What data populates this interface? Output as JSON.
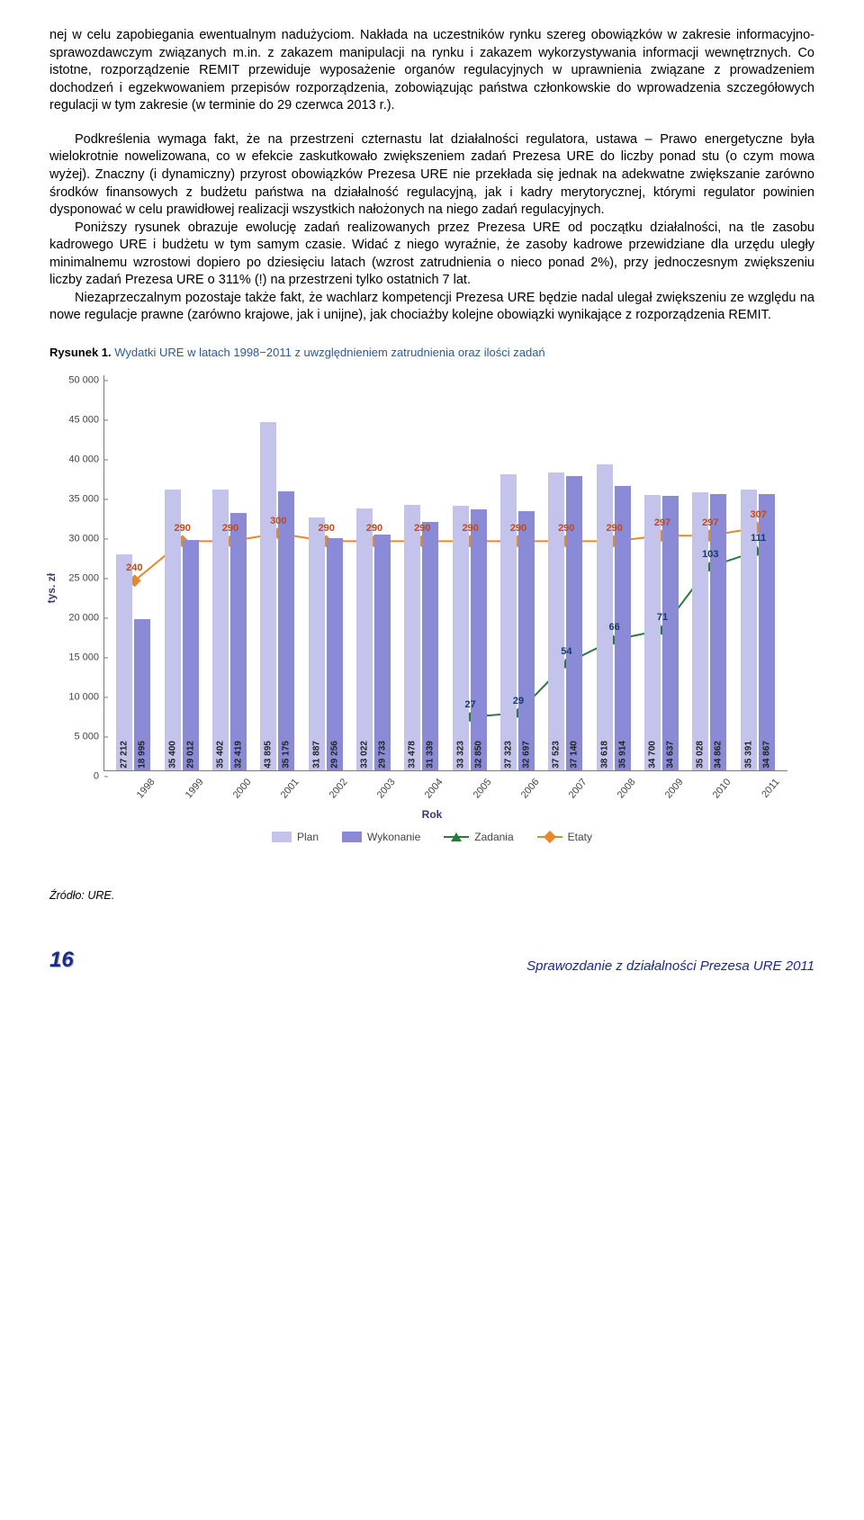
{
  "paragraphs": {
    "p1": "nej w celu zapobiegania ewentualnym nadużyciom. Nakłada na uczestników rynku szereg obowiązków w zakresie informacyjno-sprawozdawczym związanych m.in. z zakazem manipulacji na rynku i zakazem wykorzystywania informacji wewnętrznych. Co istotne, rozporządzenie REMIT przewiduje wyposażenie organów regulacyjnych w uprawnienia związane z prowadzeniem dochodzeń i egzekwowaniem przepisów rozporządzenia, zobowiązując państwa członkowskie do wprowadzenia szczegółowych regulacji w tym zakresie (w terminie do 29 czerwca 2013 r.).",
    "p2": "Podkreślenia wymaga fakt, że na przestrzeni czternastu lat działalności regulatora, ustawa – Prawo energetyczne była wielokrotnie nowelizowana, co w efekcie zaskutkowało zwiększeniem zadań Prezesa URE do liczby ponad stu (o czym mowa wyżej). Znaczny (i dynamiczny) przyrost obowiązków Prezesa URE nie przekłada się jednak na adekwatne zwiększanie zarówno środków finansowych z budżetu państwa na działalność regulacyjną, jak i kadry merytorycznej, którymi regulator powinien dysponować w celu prawidłowej realizacji wszystkich nałożonych na niego zadań regulacyjnych.",
    "p3": "Poniższy rysunek obrazuje ewolucję zadań realizowanych przez Prezesa URE od początku działalności, na tle zasobu kadrowego URE i budżetu w tym samym czasie. Widać z niego wyraźnie, że zasoby kadrowe przewidziane dla urzędu uległy minimalnemu wzrostowi dopiero po dziesięciu latach (wzrost zatrudnienia o nieco ponad 2%), przy jednoczesnym zwiększeniu liczby zadań Prezesa URE o 311% (!) na przestrzeni tylko ostatnich 7 lat.",
    "p4": "Niezaprzeczalnym pozostaje także fakt, że wachlarz kompetencji Prezesa URE będzie nadal ulegał zwiększeniu ze względu na nowe regulacje prawne (zarówno krajowe, jak i unijne), jak chociażby kolejne obowiązki wynikające z rozporządzenia REMIT."
  },
  "figure": {
    "label_bold": "Rysunek 1.",
    "caption": "Wydatki URE w latach 1998−2011 z uwzględnieniem zatrudnienia oraz ilości zadań",
    "ylabel": "tys. zł",
    "xlabel": "Rok",
    "ylim_max": 50000,
    "ytick_step": 5000,
    "yticks": [
      "0",
      "5 000",
      "10 000",
      "15 000",
      "20 000",
      "25 000",
      "30 000",
      "35 000",
      "40 000",
      "45 000",
      "50 000"
    ],
    "years": [
      "1998",
      "1999",
      "2000",
      "2001",
      "2002",
      "2003",
      "2004",
      "2005",
      "2006",
      "2007",
      "2008",
      "2009",
      "2010",
      "2011"
    ],
    "plan": [
      27212,
      35400,
      35402,
      43895,
      31887,
      33022,
      33478,
      33323,
      37323,
      37523,
      38618,
      34700,
      35028,
      35391
    ],
    "wykonanie": [
      18995,
      29012,
      32419,
      35175,
      29256,
      29733,
      31339,
      32850,
      32697,
      37140,
      35914,
      34637,
      34862,
      34867
    ],
    "plan_labels": [
      "27 212",
      "35 400",
      "35 402",
      "43 895",
      "31 887",
      "33 022",
      "33 478",
      "33 323",
      "37 323",
      "37 523",
      "38 618",
      "34 700",
      "35 028",
      "35 391"
    ],
    "wyk_labels": [
      "18 995",
      "29 012",
      "32 419",
      "35 175",
      "29 256",
      "29 733",
      "31 339",
      "32 850",
      "32 697",
      "37 140",
      "35 914",
      "34 637",
      "34 862",
      "34 867"
    ],
    "etaty": [
      240,
      290,
      290,
      300,
      290,
      290,
      290,
      290,
      290,
      290,
      290,
      297,
      297,
      307
    ],
    "zadania": [
      null,
      null,
      null,
      null,
      null,
      null,
      null,
      27,
      29,
      54,
      66,
      71,
      103,
      111
    ],
    "etaty_scale_max": 500,
    "zadania_scale_max": 200,
    "colors": {
      "plan": "#c3c3eb",
      "wykonanie": "#8a8ad6",
      "etaty_line": "#e48a2a",
      "etaty_marker": "#e48a2a",
      "etaty_label": "#c04a1a",
      "zadania_line": "#2a7a3a",
      "zadania_marker": "#2a7a3a",
      "zadania_label": "#153a6a"
    },
    "legend": {
      "plan": "Plan",
      "wykonanie": "Wykonanie",
      "zadania": "Zadania",
      "etaty": "Etaty"
    }
  },
  "source": "Źródło: URE.",
  "footer": {
    "page": "16",
    "title": "Sprawozdanie z działalności Prezesa URE 2011"
  }
}
